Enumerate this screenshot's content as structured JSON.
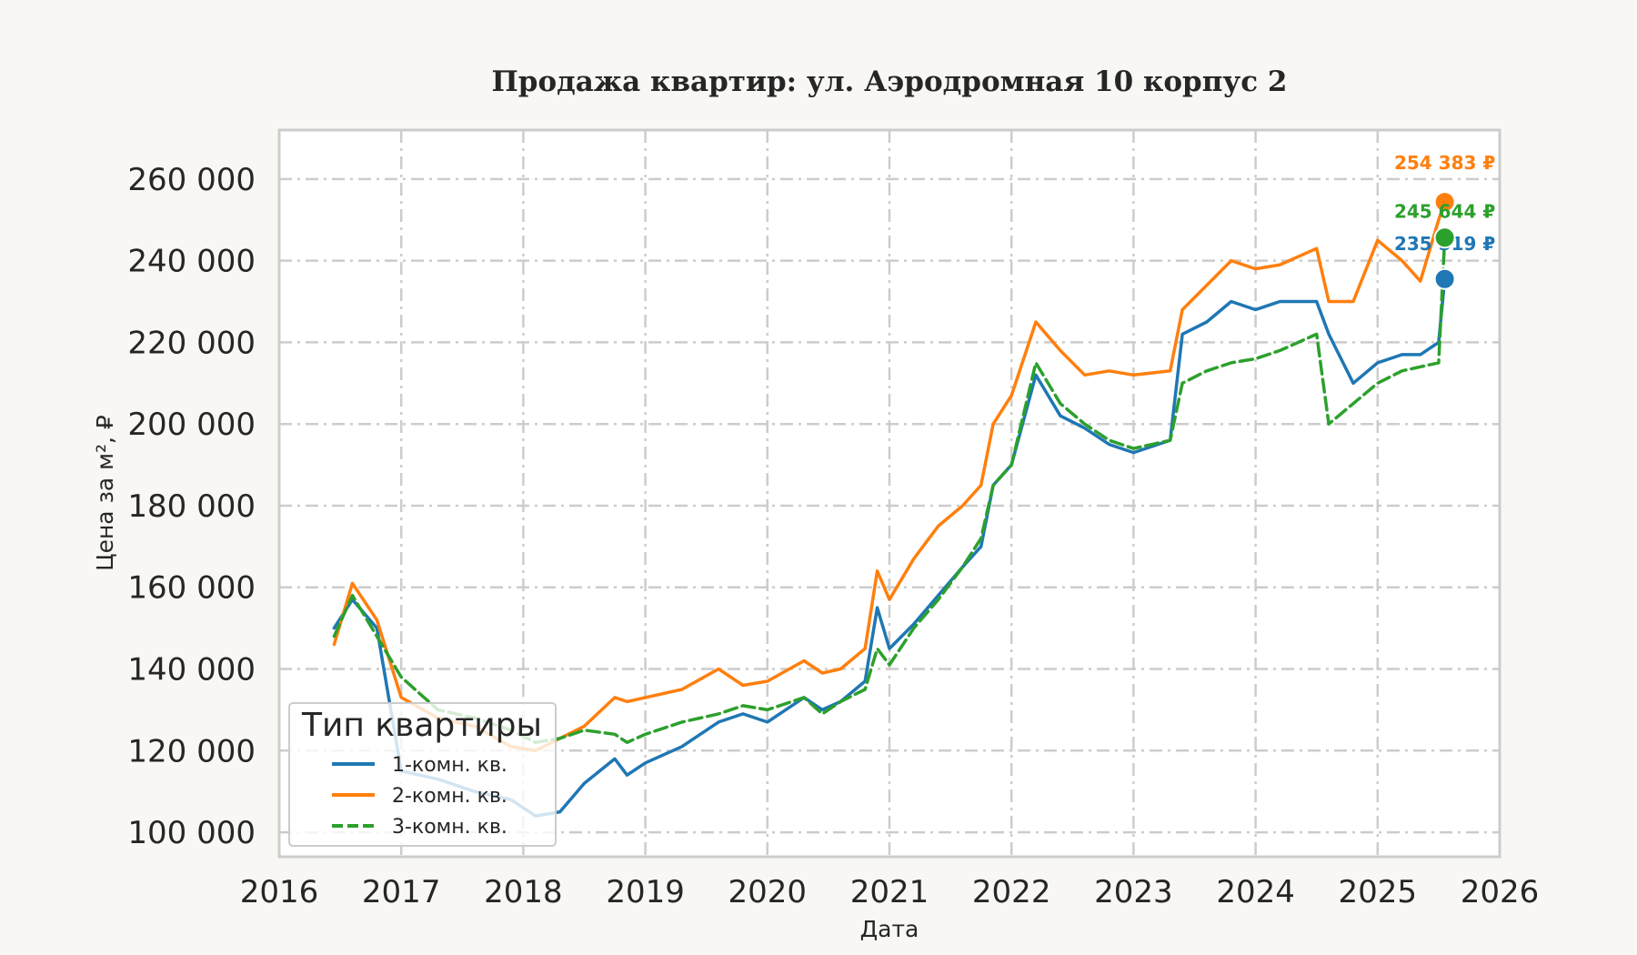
{
  "chart_data": {
    "type": "line",
    "title": "Продажа квартир: ул. Аэродромная 10 корпус 2",
    "xlabel": "Дата",
    "ylabel": "Цена за м², ₽",
    "xlim": [
      2016.0,
      2026.0
    ],
    "ylim": [
      94000,
      272000
    ],
    "x_ticks": [
      2016,
      2017,
      2018,
      2019,
      2020,
      2021,
      2022,
      2023,
      2024,
      2025,
      2026
    ],
    "x_tick_labels": [
      "2016",
      "2017",
      "2018",
      "2019",
      "2020",
      "2021",
      "2022",
      "2023",
      "2024",
      "2025",
      "2026"
    ],
    "y_ticks": [
      100000,
      120000,
      140000,
      160000,
      180000,
      200000,
      220000,
      240000,
      260000
    ],
    "y_tick_labels": [
      "100 000",
      "120 000",
      "140 000",
      "160 000",
      "180 000",
      "200 000",
      "220 000",
      "240 000",
      "260 000"
    ],
    "grid": true,
    "legend": {
      "title": "Тип квартиры",
      "position": "lower-left"
    },
    "series": [
      {
        "name": "1-комн. кв.",
        "color": "#1f77b4",
        "style": "solid",
        "end_label": "235 519 ₽",
        "end_value": 235519,
        "x": [
          2016.45,
          2016.6,
          2016.8,
          2017.0,
          2017.3,
          2017.6,
          2017.9,
          2018.1,
          2018.3,
          2018.5,
          2018.75,
          2018.85,
          2019.0,
          2019.3,
          2019.6,
          2019.8,
          2020.0,
          2020.3,
          2020.45,
          2020.6,
          2020.8,
          2020.9,
          2021.0,
          2021.2,
          2021.4,
          2021.6,
          2021.75,
          2021.85,
          2022.0,
          2022.2,
          2022.4,
          2022.6,
          2022.8,
          2023.0,
          2023.3,
          2023.4,
          2023.6,
          2023.8,
          2024.0,
          2024.2,
          2024.5,
          2024.6,
          2024.8,
          2025.0,
          2025.2,
          2025.35,
          2025.5,
          2025.55
        ],
        "values": [
          150000,
          157000,
          150000,
          115000,
          113000,
          110000,
          108000,
          104000,
          105000,
          112000,
          118000,
          114000,
          117000,
          121000,
          127000,
          129000,
          127000,
          133000,
          130000,
          132000,
          137000,
          155000,
          145000,
          151000,
          158000,
          165000,
          170000,
          185000,
          190000,
          212000,
          202000,
          199000,
          195000,
          193000,
          196000,
          222000,
          225000,
          230000,
          228000,
          230000,
          230000,
          222000,
          210000,
          215000,
          217000,
          217000,
          220000,
          235519
        ]
      },
      {
        "name": "2-комн. кв.",
        "color": "#ff7f0e",
        "style": "solid",
        "end_label": "254 383 ₽",
        "end_value": 254383,
        "x": [
          2016.45,
          2016.6,
          2016.8,
          2017.0,
          2017.3,
          2017.6,
          2017.9,
          2018.1,
          2018.3,
          2018.5,
          2018.75,
          2018.85,
          2019.0,
          2019.3,
          2019.6,
          2019.8,
          2020.0,
          2020.3,
          2020.45,
          2020.6,
          2020.8,
          2020.9,
          2021.0,
          2021.2,
          2021.4,
          2021.6,
          2021.75,
          2021.85,
          2022.0,
          2022.2,
          2022.4,
          2022.6,
          2022.8,
          2023.0,
          2023.3,
          2023.4,
          2023.6,
          2023.8,
          2024.0,
          2024.2,
          2024.5,
          2024.6,
          2024.8,
          2025.0,
          2025.2,
          2025.35,
          2025.5,
          2025.55
        ],
        "values": [
          146000,
          161000,
          152000,
          133000,
          128000,
          126000,
          121000,
          120000,
          123000,
          126000,
          133000,
          132000,
          133000,
          135000,
          140000,
          136000,
          137000,
          142000,
          139000,
          140000,
          145000,
          164000,
          157000,
          167000,
          175000,
          180000,
          185000,
          200000,
          207000,
          225000,
          218000,
          212000,
          213000,
          212000,
          213000,
          228000,
          234000,
          240000,
          238000,
          239000,
          243000,
          230000,
          230000,
          245000,
          240000,
          235000,
          250000,
          254383
        ]
      },
      {
        "name": "3-комн. кв.",
        "color": "#2ca02c",
        "style": "dashed",
        "end_label": "245 644 ₽",
        "end_value": 245644,
        "x": [
          2016.45,
          2016.6,
          2016.8,
          2017.0,
          2017.3,
          2017.6,
          2017.9,
          2018.1,
          2018.3,
          2018.5,
          2018.75,
          2018.85,
          2019.0,
          2019.3,
          2019.6,
          2019.8,
          2020.0,
          2020.3,
          2020.45,
          2020.6,
          2020.8,
          2020.9,
          2021.0,
          2021.2,
          2021.4,
          2021.6,
          2021.75,
          2021.85,
          2022.0,
          2022.2,
          2022.4,
          2022.6,
          2022.8,
          2023.0,
          2023.3,
          2023.4,
          2023.6,
          2023.8,
          2024.0,
          2024.2,
          2024.5,
          2024.6,
          2024.8,
          2025.0,
          2025.2,
          2025.35,
          2025.5,
          2025.55
        ],
        "values": [
          148000,
          158000,
          148000,
          138000,
          130000,
          128000,
          125000,
          122000,
          123000,
          125000,
          124000,
          122000,
          124000,
          127000,
          129000,
          131000,
          130000,
          133000,
          129000,
          132000,
          135000,
          145000,
          141000,
          150000,
          157000,
          165000,
          172000,
          185000,
          190000,
          215000,
          205000,
          200000,
          196000,
          194000,
          196000,
          210000,
          213000,
          215000,
          216000,
          218000,
          222000,
          200000,
          205000,
          210000,
          213000,
          214000,
          215000,
          245644
        ]
      }
    ]
  }
}
